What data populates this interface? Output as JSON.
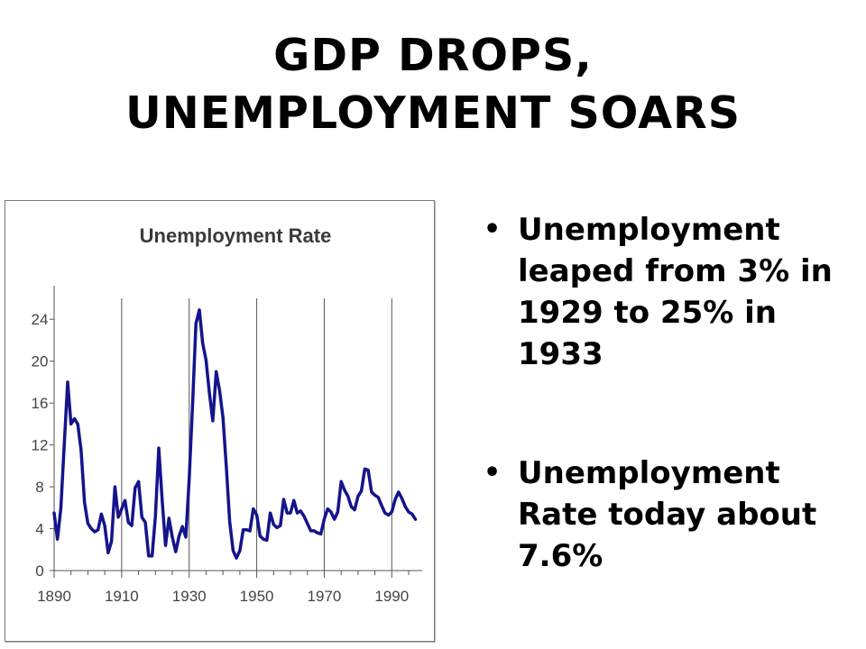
{
  "slide": {
    "title_lines": [
      "GDP DROPS,",
      "UNEMPLOYMENT SOARS"
    ],
    "bullet_marker": "•",
    "bullets": [
      "Unemployment leaped from 3% in 1929 to 25% in 1933",
      "Unemployment Rate today about 7.6%"
    ]
  },
  "chart_data": {
    "type": "line",
    "title": "Unemployment Rate",
    "xlabel": "",
    "ylabel": "",
    "xlim": [
      1890,
      1999
    ],
    "ylim": [
      0,
      26
    ],
    "xticks": [
      1890,
      1910,
      1930,
      1950,
      1970,
      1990
    ],
    "yticks": [
      0,
      4,
      8,
      12,
      16,
      20,
      24
    ],
    "vgrid_years": [
      1910,
      1930,
      1950,
      1970,
      1990
    ],
    "grid": "vertical",
    "legend": "none",
    "series": [
      {
        "color": "#14148c",
        "x": [
          1890,
          1891,
          1892,
          1893,
          1894,
          1895,
          1896,
          1897,
          1898,
          1899,
          1900,
          1901,
          1902,
          1903,
          1904,
          1905,
          1906,
          1907,
          1908,
          1909,
          1910,
          1911,
          1912,
          1913,
          1914,
          1915,
          1916,
          1917,
          1918,
          1919,
          1920,
          1921,
          1922,
          1923,
          1924,
          1925,
          1926,
          1927,
          1928,
          1929,
          1930,
          1931,
          1932,
          1933,
          1934,
          1935,
          1936,
          1937,
          1938,
          1939,
          1940,
          1941,
          1942,
          1943,
          1944,
          1945,
          1946,
          1947,
          1948,
          1949,
          1950,
          1951,
          1952,
          1953,
          1954,
          1955,
          1956,
          1957,
          1958,
          1959,
          1960,
          1961,
          1962,
          1963,
          1964,
          1965,
          1966,
          1967,
          1968,
          1969,
          1970,
          1971,
          1972,
          1973,
          1974,
          1975,
          1976,
          1977,
          1978,
          1979,
          1980,
          1981,
          1982,
          1983,
          1984,
          1985,
          1986,
          1987,
          1988,
          1989,
          1990,
          1991,
          1992,
          1993,
          1994,
          1995,
          1996,
          1997
        ],
        "y": [
          5.5,
          3.0,
          6.0,
          12.0,
          18.0,
          14.0,
          14.5,
          14.0,
          11.5,
          6.5,
          4.5,
          4.0,
          3.7,
          3.9,
          5.4,
          4.3,
          1.7,
          2.8,
          8.0,
          5.1,
          5.9,
          6.7,
          4.6,
          4.3,
          7.9,
          8.5,
          5.1,
          4.6,
          1.4,
          1.4,
          5.2,
          11.7,
          6.7,
          2.4,
          5.0,
          3.2,
          1.8,
          3.3,
          4.2,
          3.2,
          8.7,
          15.9,
          23.6,
          24.9,
          21.7,
          20.1,
          16.9,
          14.3,
          19.0,
          17.2,
          14.6,
          9.9,
          4.7,
          1.9,
          1.2,
          1.9,
          3.9,
          3.9,
          3.8,
          5.9,
          5.3,
          3.3,
          3.0,
          2.9,
          5.5,
          4.4,
          4.1,
          4.3,
          6.8,
          5.5,
          5.5,
          6.7,
          5.5,
          5.7,
          5.2,
          4.5,
          3.8,
          3.8,
          3.6,
          3.5,
          4.9,
          5.9,
          5.6,
          4.9,
          5.6,
          8.5,
          7.7,
          7.1,
          6.1,
          5.8,
          7.1,
          7.6,
          9.7,
          9.6,
          7.5,
          7.2,
          7.0,
          6.2,
          5.5,
          5.3,
          5.6,
          6.8,
          7.5,
          6.9,
          6.1,
          5.6,
          5.4,
          4.9
        ]
      }
    ]
  }
}
